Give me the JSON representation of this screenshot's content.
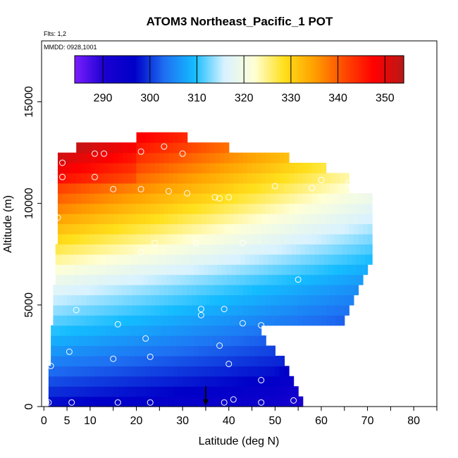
{
  "chart_data": {
    "type": "heatmap",
    "title": "ATOM3 Northeast_Pacific_1 POT",
    "flights_label": "Flts: 1,2",
    "dates_label": "MMDD: 0928,1001",
    "xlabel": "Latitude (deg N)",
    "ylabel": "Altitude (m)",
    "xlim": [
      -0.5,
      85
    ],
    "ylim": [
      0,
      18000
    ],
    "x_ticks": [
      0,
      5,
      10,
      20,
      30,
      40,
      50,
      60,
      70,
      80
    ],
    "x_minor_ticks": [
      15,
      25,
      35,
      45,
      55,
      65,
      75,
      85
    ],
    "y_ticks": [
      0,
      5000,
      10000,
      15000
    ],
    "colorbar": {
      "min": 284,
      "max": 354,
      "ticks": [
        290,
        300,
        310,
        320,
        330,
        340,
        350
      ],
      "colors": [
        "#7a1fff",
        "#1a00d0",
        "#0000c8",
        "#1e6ff2",
        "#14bcff",
        "#d8f2ff",
        "#ffffd6",
        "#ffe01c",
        "#ffa000",
        "#ff4a00",
        "#ff0000",
        "#b81818"
      ]
    },
    "boundary_lat": [
      [
        0,
        1,
        56,
        56
      ],
      [
        500,
        1,
        55,
        55
      ],
      [
        1000,
        1,
        53,
        54
      ],
      [
        2000,
        1,
        49,
        51
      ],
      [
        3000,
        1,
        46,
        47
      ],
      [
        4000,
        1.5,
        40,
        42
      ],
      [
        5000,
        2,
        35,
        37
      ],
      [
        6000,
        2.5,
        30,
        32
      ],
      [
        7000,
        3,
        26,
        28
      ],
      [
        8000,
        3,
        22,
        24
      ],
      [
        9000,
        3,
        18,
        20
      ],
      [
        10000,
        3,
        13,
        14
      ],
      [
        11000,
        3,
        10,
        10
      ],
      [
        12000,
        3,
        7,
        7
      ],
      [
        13000,
        3,
        4,
        5
      ]
    ],
    "obs_points": [
      [
        0.5,
        200
      ],
      [
        1,
        200
      ],
      [
        6,
        200
      ],
      [
        16,
        200
      ],
      [
        23,
        200
      ],
      [
        39,
        200
      ],
      [
        41,
        350
      ],
      [
        47,
        200
      ],
      [
        54,
        300
      ],
      [
        1.5,
        2000
      ],
      [
        5.5,
        2700
      ],
      [
        15,
        2350
      ],
      [
        23,
        2450
      ],
      [
        22,
        3350
      ],
      [
        38,
        3000
      ],
      [
        40,
        2100
      ],
      [
        47,
        1300
      ],
      [
        16,
        4050
      ],
      [
        43,
        4100
      ],
      [
        47,
        4000
      ],
      [
        34,
        4500
      ],
      [
        34,
        4800
      ],
      [
        39,
        4800
      ],
      [
        7,
        4750
      ],
      [
        55,
        6250
      ],
      [
        21,
        7600
      ],
      [
        24,
        8050
      ],
      [
        33,
        8050
      ],
      [
        43,
        8050
      ],
      [
        3,
        9300
      ],
      [
        15,
        10700
      ],
      [
        21,
        10700
      ],
      [
        27,
        10600
      ],
      [
        31,
        10500
      ],
      [
        37,
        10300
      ],
      [
        38,
        10250
      ],
      [
        40,
        10300
      ],
      [
        50,
        10850
      ],
      [
        58,
        10750
      ],
      [
        60,
        11150
      ],
      [
        66,
        11000
      ],
      [
        70,
        10850
      ],
      [
        4,
        11300
      ],
      [
        11,
        11300
      ],
      [
        4,
        12000
      ],
      [
        11,
        12450
      ],
      [
        13,
        12450
      ],
      [
        21,
        12550
      ],
      [
        26,
        12800
      ],
      [
        30,
        12450
      ]
    ],
    "marker_lat": 35
  }
}
